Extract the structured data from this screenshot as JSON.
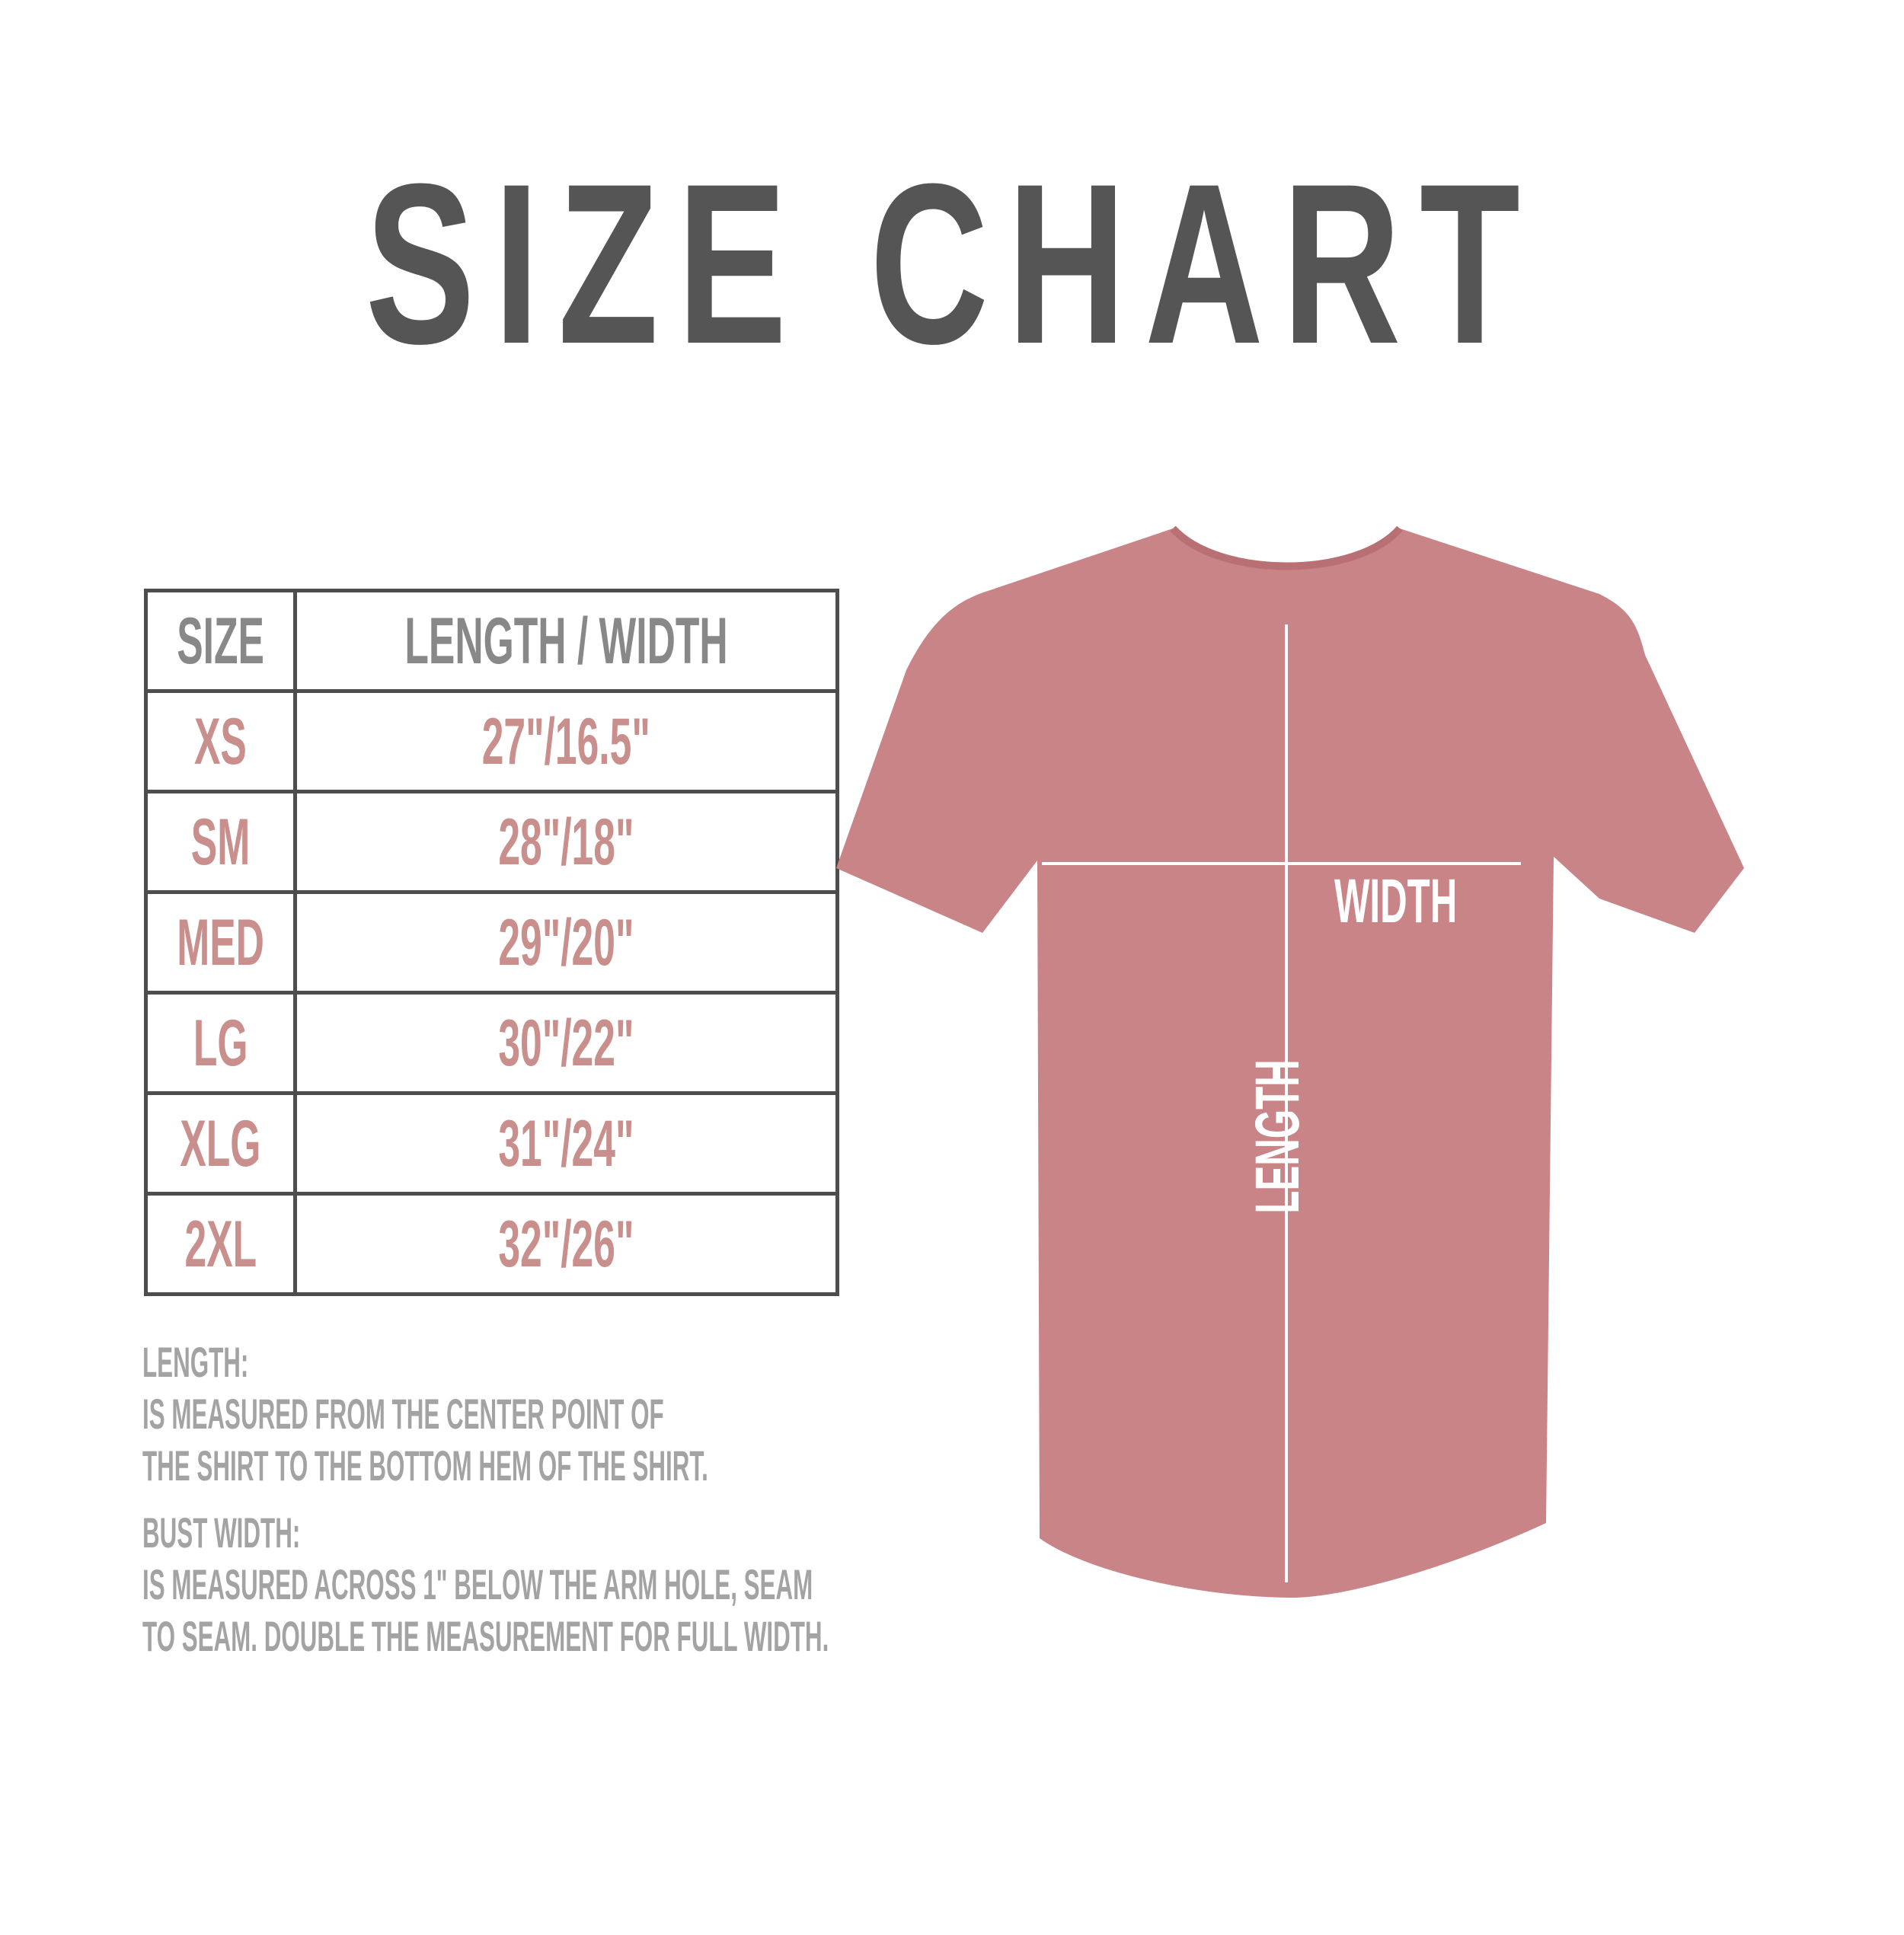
{
  "title": "SIZE CHART",
  "table": {
    "headers": [
      "SIZE",
      "LENGTH / WIDTH"
    ],
    "rows": [
      {
        "size": "XS",
        "measure": "27\"/16.5\""
      },
      {
        "size": "SM",
        "measure": "28\"/18\""
      },
      {
        "size": "MED",
        "measure": "29\"/20\""
      },
      {
        "size": "LG",
        "measure": "30\"/22\""
      },
      {
        "size": "XLG",
        "measure": "31\"/24\""
      },
      {
        "size": "2XL",
        "measure": "32\"/26\""
      }
    ]
  },
  "notes": {
    "length_heading": "LENGTH:",
    "length_lines": [
      "IS MEASURED FROM THE CENTER POINT OF",
      "THE SHIRT TO THE BOTTOM HEM OF THE SHIRT."
    ],
    "width_heading": "BUST WIDTH:",
    "width_lines": [
      "IS MEASURED ACROSS  1\" BELOW THE ARM HOLE, SEAM",
      "TO SEAM. DOUBLE THE MEASUREMENT FOR FULL WIDTH."
    ]
  },
  "diagram": {
    "width_label": "WIDTH",
    "length_label": "LENGTH",
    "shirt_color": "#c98487"
  }
}
